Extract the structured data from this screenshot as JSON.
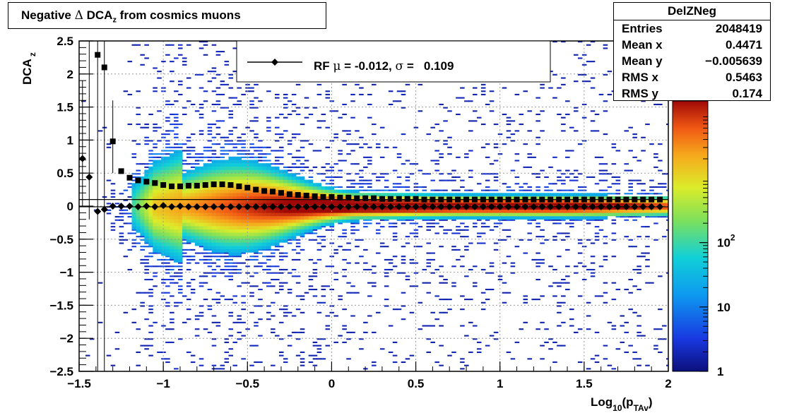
{
  "title": "Negative Δ DCA_z from cosmics muons",
  "title_parts": {
    "pre": "Negative ",
    "delta": "Δ",
    "mid": " DCA",
    "sub": "z",
    "post": " from cosmics muons"
  },
  "stats_box": {
    "name": "DelZNeg",
    "rows": [
      {
        "label": "Entries",
        "value": "2048419"
      },
      {
        "label": "Mean x",
        "value": "0.4471"
      },
      {
        "label": "Mean y",
        "value": "−0.005639"
      },
      {
        "label": "RMS x",
        "value": "0.5463"
      },
      {
        "label": "RMS y",
        "value": "0.174"
      }
    ]
  },
  "legend": {
    "text": "RF μ = -0.012, σ =   0.109",
    "pre": "RF ",
    "mu": "μ",
    "mid": " = -0.012, ",
    "sigma": "σ",
    "post": " =   0.109"
  },
  "colors": {
    "mean_marker": "#000000",
    "sigma_marker": "#000000",
    "frame": "#000000",
    "grid": "#9a9a9a"
  },
  "chart_data": {
    "type": "heatmap",
    "title": "Negative Δ DCA_z from cosmics muons",
    "xlabel": "Log10(pTAv)",
    "xlabel_parts": {
      "pre": "Log",
      "sub1": "10",
      "mid": "(p",
      "sub2": "TAv",
      "post": ")"
    },
    "ylabel": "DCA_z",
    "ylabel_parts": {
      "main": "DCA",
      "sub": "z"
    },
    "xlim": [
      -1.5,
      2
    ],
    "ylim": [
      -2.5,
      2.5
    ],
    "x_ticks": [
      -1.5,
      -1,
      -0.5,
      0,
      0.5,
      1,
      1.5,
      2
    ],
    "x_tick_labels": [
      "−1.5",
      "−1",
      "−0.5",
      "0",
      "0.5",
      "1",
      "1.5",
      "2"
    ],
    "y_ticks": [
      -2.5,
      -2,
      -1.5,
      -1,
      -0.5,
      0,
      0.5,
      1,
      1.5,
      2,
      2.5
    ],
    "y_tick_labels": [
      "−2.5",
      "−2",
      "−1.5",
      "−1",
      "−0.5",
      "0",
      "0.5",
      "1",
      "1.5",
      "2",
      "2.5"
    ],
    "z_scale": "log",
    "zlim": [
      1,
      10000
    ],
    "z_tick_labels": [
      {
        "value": 1,
        "label": "1"
      },
      {
        "value": 10,
        "label": "10"
      },
      {
        "value": 100,
        "label": "10",
        "sup": "2"
      }
    ],
    "grid": true,
    "series": [
      {
        "name": "mean",
        "marker": "diamond",
        "x": [
          -1.48,
          -1.44,
          -1.39,
          -1.35,
          -1.3,
          -1.25,
          -1.2,
          -1.15,
          -1.1,
          -1.05,
          -1.0,
          -0.95,
          -0.9,
          -0.85,
          -0.8,
          -0.75,
          -0.7,
          -0.65,
          -0.6,
          -0.55,
          -0.5,
          -0.45,
          -0.4,
          -0.35,
          -0.3,
          -0.25,
          -0.2,
          -0.15,
          -0.1,
          -0.05,
          0.0,
          0.05,
          0.1,
          0.15,
          0.2,
          0.25,
          0.3,
          0.35,
          0.4,
          0.45,
          0.5,
          0.55,
          0.6,
          0.65,
          0.7,
          0.75,
          0.8,
          0.85,
          0.9,
          0.95,
          1.0,
          1.05,
          1.1,
          1.15,
          1.2,
          1.25,
          1.3,
          1.35,
          1.4,
          1.45,
          1.5,
          1.55,
          1.6,
          1.65,
          1.7,
          1.75,
          1.8,
          1.85,
          1.9,
          1.95
        ],
        "y": [
          0.72,
          0.44,
          -0.08,
          -0.05,
          0.0,
          0.0,
          0.0,
          -0.01,
          0.0,
          -0.01,
          0.01,
          -0.01,
          0.0,
          -0.01,
          -0.01,
          -0.01,
          -0.01,
          -0.01,
          -0.01,
          -0.01,
          -0.01,
          -0.01,
          -0.01,
          -0.01,
          -0.01,
          -0.01,
          -0.01,
          -0.01,
          -0.01,
          -0.01,
          -0.01,
          -0.01,
          -0.01,
          -0.01,
          -0.01,
          -0.01,
          -0.01,
          -0.01,
          -0.01,
          -0.01,
          -0.01,
          -0.01,
          -0.01,
          -0.01,
          -0.01,
          -0.01,
          -0.01,
          -0.01,
          -0.01,
          -0.01,
          -0.01,
          -0.01,
          -0.01,
          -0.01,
          -0.01,
          -0.01,
          -0.01,
          -0.01,
          -0.01,
          -0.01,
          -0.01,
          -0.01,
          -0.01,
          -0.01,
          -0.01,
          -0.01,
          -0.01,
          -0.01,
          -0.01,
          -0.01
        ]
      },
      {
        "name": "sigma",
        "marker": "square",
        "x": [
          -1.39,
          -1.35,
          -1.3,
          -1.25,
          -1.2,
          -1.15,
          -1.1,
          -1.05,
          -1.0,
          -0.95,
          -0.9,
          -0.85,
          -0.8,
          -0.75,
          -0.7,
          -0.65,
          -0.6,
          -0.55,
          -0.5,
          -0.45,
          -0.4,
          -0.35,
          -0.3,
          -0.25,
          -0.2,
          -0.15,
          -0.1,
          -0.05,
          0.0,
          0.05,
          0.1,
          0.15,
          0.2,
          0.25,
          0.3,
          0.35,
          0.4,
          0.45,
          0.5,
          0.55,
          0.6,
          0.65,
          0.7,
          0.75,
          0.8,
          0.85,
          0.9,
          0.95,
          1.0,
          1.05,
          1.1,
          1.15,
          1.2,
          1.25,
          1.3,
          1.35,
          1.4,
          1.45,
          1.5,
          1.55,
          1.6,
          1.65,
          1.7,
          1.75,
          1.8,
          1.85,
          1.9,
          1.95
        ],
        "y": [
          2.29,
          2.1,
          0.98,
          0.53,
          0.43,
          0.39,
          0.37,
          0.35,
          0.32,
          0.3,
          0.3,
          0.31,
          0.31,
          0.32,
          0.33,
          0.33,
          0.32,
          0.3,
          0.28,
          0.25,
          0.23,
          0.22,
          0.2,
          0.18,
          0.17,
          0.16,
          0.15,
          0.14,
          0.14,
          0.13,
          0.13,
          0.12,
          0.12,
          0.12,
          0.11,
          0.11,
          0.11,
          0.11,
          0.11,
          0.1,
          0.1,
          0.1,
          0.1,
          0.1,
          0.1,
          0.1,
          0.1,
          0.1,
          0.1,
          0.1,
          0.1,
          0.1,
          0.1,
          0.1,
          0.1,
          0.1,
          0.1,
          0.1,
          0.1,
          0.1,
          0.1,
          0.1,
          0.1,
          0.1,
          0.1,
          0.1,
          0.1,
          0.1
        ]
      }
    ]
  }
}
